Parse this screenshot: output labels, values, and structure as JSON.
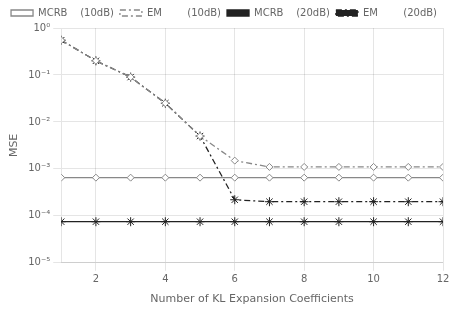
{
  "chart_data": {
    "type": "line",
    "xlabel": "Number of KL Expansion Coefficients",
    "ylabel": "MSE",
    "xlim": [
      1,
      12
    ],
    "ylim": [
      1e-05,
      1
    ],
    "xticks": [
      2,
      4,
      6,
      8,
      10,
      12
    ],
    "yticks": [
      {
        "value": 1e-05,
        "label": "10⁻⁵"
      },
      {
        "value": 0.0001,
        "label": "10⁻⁴"
      },
      {
        "value": 0.001,
        "label": "10⁻³"
      },
      {
        "value": 0.01,
        "label": "10⁻²"
      },
      {
        "value": 0.1,
        "label": "10⁻¹"
      },
      {
        "value": 1,
        "label": "10⁰"
      }
    ],
    "log": "y",
    "grid": true,
    "legend": "upper right",
    "x": [
      1,
      2,
      3,
      4,
      5,
      6,
      7,
      8,
      9,
      10,
      11,
      12
    ],
    "series": [
      {
        "name": "MCRB    (10dB)",
        "color": "#888888",
        "marker": "diamond",
        "line_style": "solid",
        "values": [
          0.00065,
          0.00065,
          0.00065,
          0.00065,
          0.00065,
          0.00065,
          0.00065,
          0.00065,
          0.00065,
          0.00065,
          0.00065,
          0.00065
        ]
      },
      {
        "name": "EM        (10dB)",
        "color": "#888888",
        "marker": "diamond",
        "line_style": "dashdot",
        "values": [
          0.55,
          0.2,
          0.09,
          0.025,
          0.005,
          0.0015,
          0.0011,
          0.0011,
          0.0011,
          0.0011,
          0.0011,
          0.0011
        ]
      },
      {
        "name": "MCRB    (20dB)",
        "color": "#222222",
        "marker": "star",
        "line_style": "solid",
        "values": [
          7.5e-05,
          7.5e-05,
          7.5e-05,
          7.5e-05,
          7.5e-05,
          7.5e-05,
          7.5e-05,
          7.5e-05,
          7.5e-05,
          7.5e-05,
          7.5e-05,
          7.5e-05
        ]
      },
      {
        "name": "EM        (20dB)",
        "color": "#222222",
        "marker": "star",
        "line_style": "dashdot",
        "values": [
          0.55,
          0.2,
          0.09,
          0.025,
          0.005,
          0.00022,
          0.0002,
          0.0002,
          0.0002,
          0.0002,
          0.0002,
          0.0002
        ]
      }
    ]
  }
}
